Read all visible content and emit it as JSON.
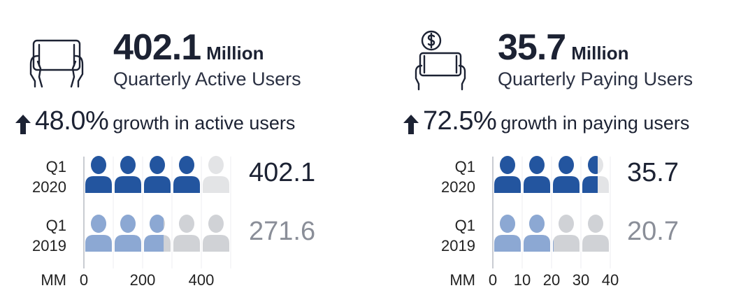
{
  "colors": {
    "dark_blue": "#23559f",
    "light_blue": "#8ca8d3",
    "dark_grey_empty": "#d0d2d6",
    "light_grey_empty": "#e3e4e6",
    "text_dark": "#1c2233",
    "text_grey": "#8a8e98"
  },
  "left": {
    "icon": "tablet-hands-icon",
    "headline_value": "402.1",
    "headline_unit": "Million",
    "subtitle": "Quarterly Active Users",
    "growth_pct": "48.0%",
    "growth_text": "growth in active users"
  },
  "right": {
    "icon": "tablet-dollar-hands-icon",
    "headline_value": "35.7",
    "headline_unit": "Million",
    "subtitle": "Quarterly Paying Users",
    "growth_pct": "72.5%",
    "growth_text": "growth in paying users"
  },
  "chart_data": [
    {
      "type": "bar",
      "categories": [
        "Q1\n2020",
        "Q1\n2019"
      ],
      "category_lines": [
        [
          "Q1",
          "2020"
        ],
        [
          "Q1",
          "2019"
        ]
      ],
      "series": [
        {
          "values": [
            402.1,
            271.6
          ]
        }
      ],
      "value_labels": [
        "402.1",
        "271.6"
      ],
      "xlabel": "MM",
      "xticks": [
        "0",
        "200",
        "400"
      ],
      "xtick_values": [
        0,
        200,
        400
      ],
      "units_per_icon": 100,
      "icon_count": 5,
      "xlim": [
        0,
        500
      ]
    },
    {
      "type": "bar",
      "categories": [
        "Q1\n2020",
        "Q1\n2019"
      ],
      "category_lines": [
        [
          "Q1",
          "2020"
        ],
        [
          "Q1",
          "2019"
        ]
      ],
      "series": [
        {
          "values": [
            35.7,
            20.7
          ]
        }
      ],
      "value_labels": [
        "35.7",
        "20.7"
      ],
      "xlabel": "MM",
      "xticks": [
        "0",
        "10",
        "20",
        "30",
        "40"
      ],
      "xtick_values": [
        0,
        10,
        20,
        30,
        40
      ],
      "units_per_icon": 10,
      "icon_count": 4,
      "xlim": [
        0,
        40
      ]
    }
  ]
}
